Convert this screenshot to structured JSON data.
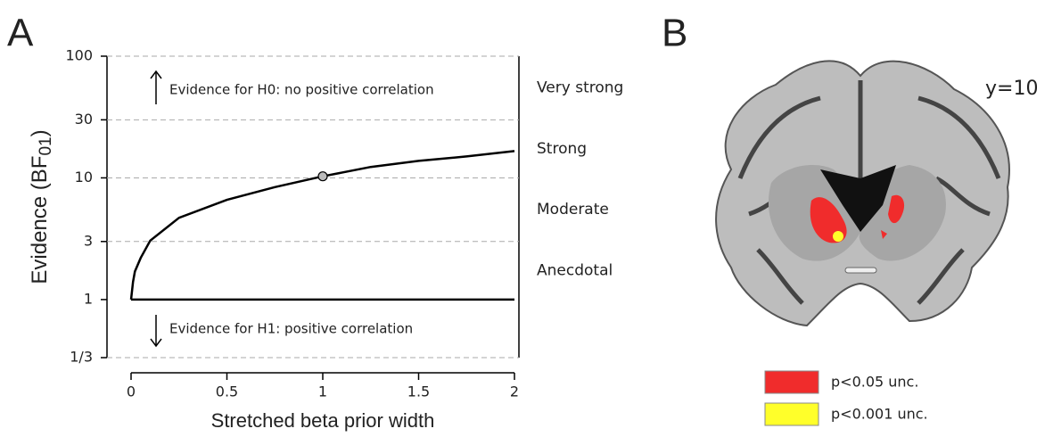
{
  "chart_data": {
    "type": "line",
    "panel_label": "A",
    "ylabel_main": "Evidence (BF",
    "ylabel_sub": "01",
    "ylabel_end": ")",
    "xlabel": "Stretched beta prior width",
    "x": [
      0,
      0.01,
      0.02,
      0.05,
      0.1,
      0.25,
      0.5,
      0.75,
      1,
      1.25,
      1.5,
      1.75,
      2
    ],
    "values": [
      1,
      1.4,
      1.7,
      2.2,
      3.05,
      4.7,
      6.6,
      8.4,
      10.3,
      12.3,
      13.8,
      15,
      16.6
    ],
    "color": "#000000",
    "highlight": {
      "x": 1,
      "y": 10.3
    },
    "xlim": [
      0,
      2
    ],
    "xticks": [
      0,
      0.5,
      1,
      1.5,
      2
    ],
    "ylim": [
      0.3333,
      100
    ],
    "log_y": true,
    "yticks": [
      {
        "value": 0.3333,
        "label": "1/3"
      },
      1,
      3,
      10,
      30,
      100
    ],
    "grid": true,
    "zones": [
      {
        "label": "Very strong",
        "center": 54.8
      },
      {
        "label": "Strong",
        "center": 17.3
      },
      {
        "label": "Moderate",
        "center": 5.48
      },
      {
        "label": "Anecdotal",
        "center": 1.73
      }
    ],
    "annotations": [
      "Evidence for H0: no positive correlation",
      "Evidence for H1: positive correlation"
    ]
  },
  "panel_b": {
    "label": "B",
    "slice": "y=10",
    "legend": [
      {
        "label": "p<0.05 unc.",
        "color": "#f02c2c"
      },
      {
        "label": "p<0.001 unc.",
        "color": "#ffff2a"
      }
    ]
  }
}
